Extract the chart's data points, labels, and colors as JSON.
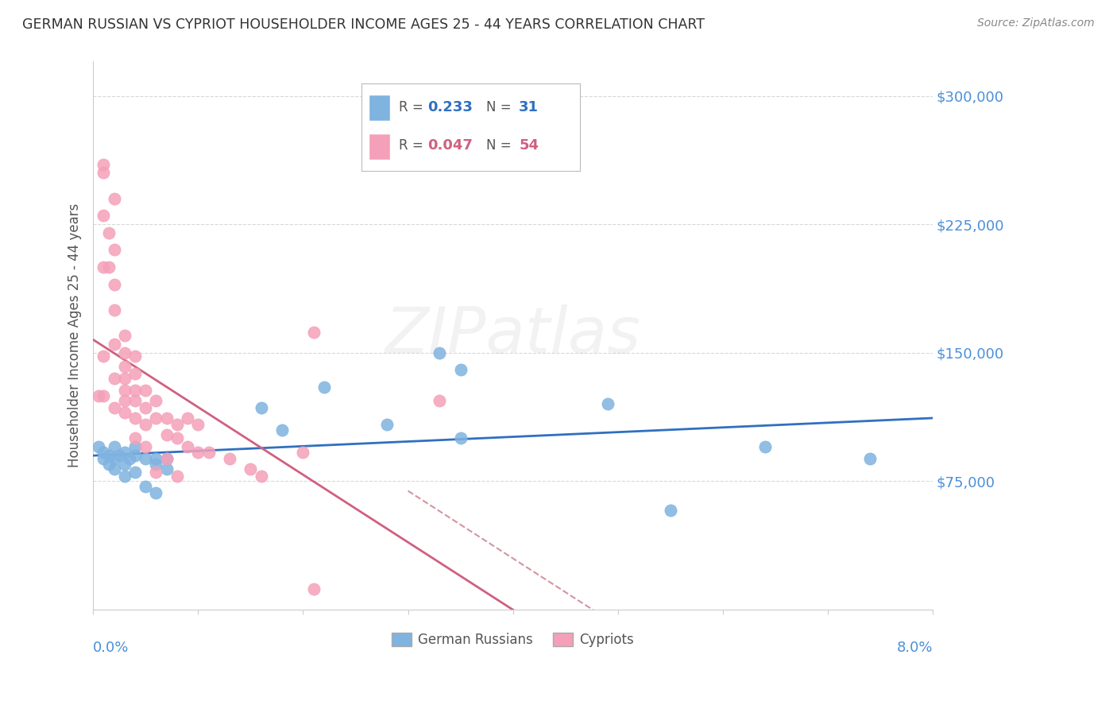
{
  "title": "GERMAN RUSSIAN VS CYPRIOT HOUSEHOLDER INCOME AGES 25 - 44 YEARS CORRELATION CHART",
  "source": "Source: ZipAtlas.com",
  "ylabel": "Householder Income Ages 25 - 44 years",
  "xmin": 0.0,
  "xmax": 0.08,
  "ymin": 0,
  "ymax": 320000,
  "yticks": [
    0,
    75000,
    150000,
    225000,
    300000
  ],
  "blue_color": "#7fb3e0",
  "pink_color": "#f4a0b8",
  "blue_line_color": "#3070c0",
  "pink_line_color": "#d06080",
  "pink_dashed_color": "#c06878",
  "background_color": "#ffffff",
  "grid_color": "#d8d8d8",
  "title_color": "#333333",
  "right_label_color": "#4a90d9",
  "source_color": "#888888",
  "german_russian_x": [
    0.0005,
    0.001,
    0.001,
    0.0015,
    0.0015,
    0.002,
    0.002,
    0.002,
    0.0025,
    0.003,
    0.003,
    0.003,
    0.0035,
    0.004,
    0.004,
    0.004,
    0.005,
    0.005,
    0.006,
    0.006,
    0.006,
    0.007,
    0.007,
    0.016,
    0.018,
    0.022,
    0.028,
    0.033,
    0.035,
    0.035,
    0.049,
    0.055,
    0.064,
    0.074
  ],
  "german_russian_y": [
    95000,
    88000,
    92000,
    85000,
    90000,
    82000,
    88000,
    95000,
    90000,
    78000,
    85000,
    92000,
    88000,
    80000,
    90000,
    95000,
    88000,
    72000,
    85000,
    88000,
    68000,
    88000,
    82000,
    118000,
    105000,
    130000,
    108000,
    150000,
    140000,
    100000,
    120000,
    58000,
    95000,
    88000
  ],
  "cypriot_x": [
    0.0005,
    0.001,
    0.001,
    0.001,
    0.001,
    0.001,
    0.001,
    0.0015,
    0.0015,
    0.002,
    0.002,
    0.002,
    0.002,
    0.002,
    0.002,
    0.002,
    0.003,
    0.003,
    0.003,
    0.003,
    0.003,
    0.003,
    0.003,
    0.004,
    0.004,
    0.004,
    0.004,
    0.004,
    0.004,
    0.005,
    0.005,
    0.005,
    0.005,
    0.006,
    0.006,
    0.006,
    0.007,
    0.007,
    0.007,
    0.008,
    0.008,
    0.008,
    0.009,
    0.009,
    0.01,
    0.01,
    0.011,
    0.013,
    0.015,
    0.016,
    0.02,
    0.021,
    0.033,
    0.021
  ],
  "cypriot_y": [
    125000,
    260000,
    255000,
    230000,
    200000,
    148000,
    125000,
    220000,
    200000,
    240000,
    210000,
    190000,
    175000,
    155000,
    135000,
    118000,
    160000,
    150000,
    142000,
    135000,
    128000,
    122000,
    115000,
    148000,
    138000,
    128000,
    122000,
    112000,
    100000,
    128000,
    118000,
    108000,
    95000,
    122000,
    112000,
    80000,
    112000,
    102000,
    88000,
    108000,
    100000,
    78000,
    112000,
    95000,
    108000,
    92000,
    92000,
    88000,
    82000,
    78000,
    92000,
    162000,
    122000,
    12000
  ]
}
